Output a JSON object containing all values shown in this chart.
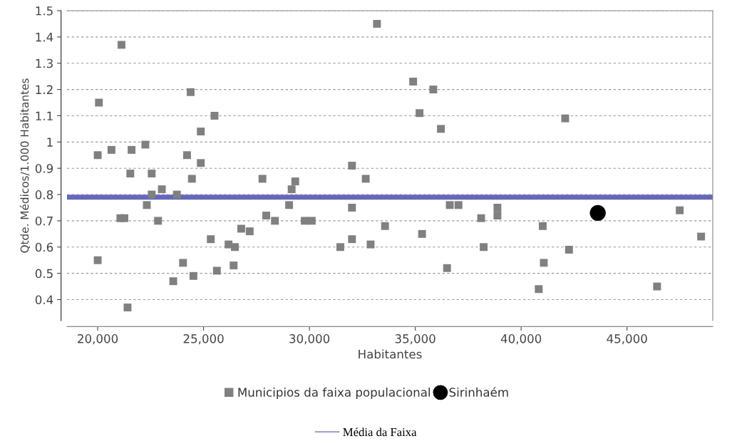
{
  "chart_data": {
    "type": "scatter",
    "xlabel": "Habitantes",
    "ylabel": "Qtde. Médicos/1.000 Habitantes",
    "xlim": [
      18550,
      49050
    ],
    "ylim": [
      0.32,
      1.5
    ],
    "xticks": [
      {
        "value": 20000,
        "label": "20,000"
      },
      {
        "value": 25000,
        "label": "25,000"
      },
      {
        "value": 30000,
        "label": "30,000"
      },
      {
        "value": 35000,
        "label": "35,000"
      },
      {
        "value": 40000,
        "label": "40,000"
      },
      {
        "value": 45000,
        "label": "45,000"
      }
    ],
    "yticks": [
      0.4,
      0.5,
      0.6,
      0.7,
      0.8,
      0.9,
      1,
      1.1,
      1.2,
      1.3,
      1.4,
      1.5
    ],
    "grid": "y",
    "legend": "bottom",
    "series": [
      {
        "name": "Municipios da faixa populacional",
        "color": "#808080",
        "marker": "square",
        "x": [
          20057,
          21123,
          24390,
          25517,
          24870,
          20000,
          20650,
          21600,
          22250,
          24220,
          24870,
          32010,
          33190,
          34900,
          35850,
          35200,
          36210,
          42080,
          21540,
          22550,
          24450,
          27780,
          22550,
          23030,
          23740,
          22320,
          21070,
          21260,
          22850,
          29160,
          29330,
          29040,
          27960,
          28370,
          29780,
          30110,
          32010,
          32660,
          32010,
          31460,
          32890,
          33570,
          20000,
          25340,
          26180,
          26480,
          26780,
          27180,
          24030,
          24520,
          23570,
          25630,
          26420,
          21410,
          36630,
          37040,
          38880,
          38880,
          38110,
          35320,
          36500,
          38230,
          41020,
          41070,
          40830,
          42260,
          47490,
          48500,
          46420
        ],
        "values": [
          1.15,
          1.37,
          1.19,
          1.1,
          1.04,
          0.95,
          0.97,
          0.97,
          0.99,
          0.95,
          0.92,
          0.91,
          1.45,
          1.23,
          1.2,
          1.11,
          1.05,
          1.09,
          0.88,
          0.88,
          0.86,
          0.86,
          0.8,
          0.82,
          0.8,
          0.76,
          0.71,
          0.71,
          0.7,
          0.82,
          0.85,
          0.76,
          0.72,
          0.7,
          0.7,
          0.7,
          0.75,
          0.86,
          0.63,
          0.6,
          0.61,
          0.68,
          0.55,
          0.63,
          0.61,
          0.6,
          0.67,
          0.66,
          0.54,
          0.49,
          0.47,
          0.51,
          0.53,
          0.37,
          0.76,
          0.76,
          0.75,
          0.72,
          0.71,
          0.65,
          0.52,
          0.6,
          0.68,
          0.54,
          0.44,
          0.59,
          0.74,
          0.64,
          0.45
        ]
      },
      {
        "name": "Sirinhaém",
        "color": "#000000",
        "marker": "circle",
        "x": [
          43620
        ],
        "values": [
          0.73
        ]
      }
    ],
    "ref_lines": [
      {
        "axis": "y",
        "value": 0.79,
        "label": "Média da Faixa",
        "color": "#6666bb"
      }
    ]
  }
}
